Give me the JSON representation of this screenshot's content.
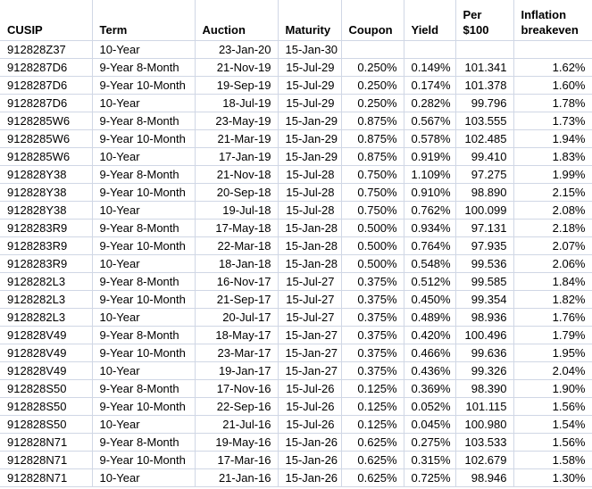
{
  "table": {
    "columns": [
      {
        "label": "CUSIP",
        "align": "left"
      },
      {
        "label": "Term",
        "align": "left"
      },
      {
        "label": "Auction",
        "align": "right"
      },
      {
        "label": "Maturity",
        "align": "right"
      },
      {
        "label": "Coupon",
        "align": "right"
      },
      {
        "label": "Yield",
        "align": "right"
      },
      {
        "label": "Per $100",
        "align": "right"
      },
      {
        "label": "Inflation breakeven",
        "align": "right"
      }
    ],
    "rows": [
      [
        "912828Z37",
        "10-Year",
        "23-Jan-20",
        "15-Jan-30",
        "",
        "",
        "",
        ""
      ],
      [
        "9128287D6",
        "9-Year 8-Month",
        "21-Nov-19",
        "15-Jul-29",
        "0.250%",
        "0.149%",
        "101.341",
        "1.62%"
      ],
      [
        "9128287D6",
        "9-Year 10-Month",
        "19-Sep-19",
        "15-Jul-29",
        "0.250%",
        "0.174%",
        "101.378",
        "1.60%"
      ],
      [
        "9128287D6",
        "10-Year",
        "18-Jul-19",
        "15-Jul-29",
        "0.250%",
        "0.282%",
        "99.796",
        "1.78%"
      ],
      [
        "9128285W6",
        "9-Year 8-Month",
        "23-May-19",
        "15-Jan-29",
        "0.875%",
        "0.567%",
        "103.555",
        "1.73%"
      ],
      [
        "9128285W6",
        "9-Year 10-Month",
        "21-Mar-19",
        "15-Jan-29",
        "0.875%",
        "0.578%",
        "102.485",
        "1.94%"
      ],
      [
        "9128285W6",
        "10-Year",
        "17-Jan-19",
        "15-Jan-29",
        "0.875%",
        "0.919%",
        "99.410",
        "1.83%"
      ],
      [
        "912828Y38",
        "9-Year 8-Month",
        "21-Nov-18",
        "15-Jul-28",
        "0.750%",
        "1.109%",
        "97.275",
        "1.99%"
      ],
      [
        "912828Y38",
        "9-Year 10-Month",
        "20-Sep-18",
        "15-Jul-28",
        "0.750%",
        "0.910%",
        "98.890",
        "2.15%"
      ],
      [
        "912828Y38",
        "10-Year",
        "19-Jul-18",
        "15-Jul-28",
        "0.750%",
        "0.762%",
        "100.099",
        "2.08%"
      ],
      [
        "9128283R9",
        "9-Year 8-Month",
        "17-May-18",
        "15-Jan-28",
        "0.500%",
        "0.934%",
        "97.131",
        "2.18%"
      ],
      [
        "9128283R9",
        "9-Year 10-Month",
        "22-Mar-18",
        "15-Jan-28",
        "0.500%",
        "0.764%",
        "97.935",
        "2.07%"
      ],
      [
        "9128283R9",
        "10-Year",
        "18-Jan-18",
        "15-Jan-28",
        "0.500%",
        "0.548%",
        "99.536",
        "2.06%"
      ],
      [
        "9128282L3",
        "9-Year 8-Month",
        "16-Nov-17",
        "15-Jul-27",
        "0.375%",
        "0.512%",
        "99.585",
        "1.84%"
      ],
      [
        "9128282L3",
        "9-Year 10-Month",
        "21-Sep-17",
        "15-Jul-27",
        "0.375%",
        "0.450%",
        "99.354",
        "1.82%"
      ],
      [
        "9128282L3",
        "10-Year",
        "20-Jul-17",
        "15-Jul-27",
        "0.375%",
        "0.489%",
        "98.936",
        "1.76%"
      ],
      [
        "912828V49",
        "9-Year 8-Month",
        "18-May-17",
        "15-Jan-27",
        "0.375%",
        "0.420%",
        "100.496",
        "1.79%"
      ],
      [
        "912828V49",
        "9-Year 10-Month",
        "23-Mar-17",
        "15-Jan-27",
        "0.375%",
        "0.466%",
        "99.636",
        "1.95%"
      ],
      [
        "912828V49",
        "10-Year",
        "19-Jan-17",
        "15-Jan-27",
        "0.375%",
        "0.436%",
        "99.326",
        "2.04%"
      ],
      [
        "912828S50",
        "9-Year 8-Month",
        "17-Nov-16",
        "15-Jul-26",
        "0.125%",
        "0.369%",
        "98.390",
        "1.90%"
      ],
      [
        "912828S50",
        "9-Year 10-Month",
        "22-Sep-16",
        "15-Jul-26",
        "0.125%",
        "0.052%",
        "101.115",
        "1.56%"
      ],
      [
        "912828S50",
        "10-Year",
        "21-Jul-16",
        "15-Jul-26",
        "0.125%",
        "0.045%",
        "100.980",
        "1.54%"
      ],
      [
        "912828N71",
        "9-Year 8-Month",
        "19-May-16",
        "15-Jan-26",
        "0.625%",
        "0.275%",
        "103.533",
        "1.56%"
      ],
      [
        "912828N71",
        "9-Year 10-Month",
        "17-Mar-16",
        "15-Jan-26",
        "0.625%",
        "0.315%",
        "102.679",
        "1.58%"
      ],
      [
        "912828N71",
        "10-Year",
        "21-Jan-16",
        "15-Jan-26",
        "0.625%",
        "0.725%",
        "98.946",
        "1.30%"
      ]
    ]
  },
  "colors": {
    "gridline": "#d0d7e5",
    "text": "#000000",
    "background": "#ffffff"
  }
}
